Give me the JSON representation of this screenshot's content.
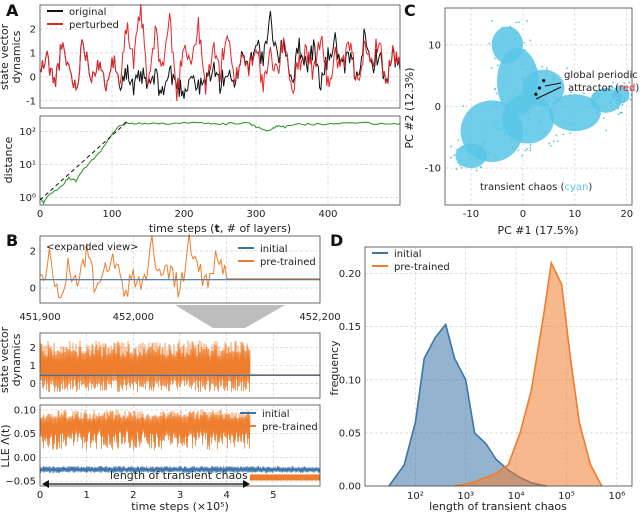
{
  "colors": {
    "original": "#111111",
    "perturbed": "#e4262b",
    "distance": "#3a9a2f",
    "initial": "#3d74a8",
    "pretrained": "#ee7d2d",
    "cyan": "#58c6e6",
    "dashed": "#111111"
  },
  "panel_labels": [
    "A",
    "B",
    "C",
    "D"
  ],
  "chart_data": [
    {
      "id": "A-top",
      "type": "line",
      "ylabel": "state vector dynamics",
      "ylabel_lines": [
        "state vector",
        "dynamics"
      ],
      "xlim": [
        0,
        500
      ],
      "ylim": [
        -1.3,
        3.0
      ],
      "yticks": [
        -1,
        0,
        1,
        2
      ],
      "legend": [
        "original",
        "perturbed"
      ],
      "legend_position": "top-left",
      "series": [
        {
          "name": "original",
          "x": [
            0,
            10,
            20,
            30,
            40,
            50,
            60,
            70,
            80,
            90,
            100,
            110,
            120,
            130,
            140,
            150,
            160,
            170,
            180,
            190,
            200,
            210,
            220,
            230,
            240,
            250,
            260,
            270,
            280,
            290,
            300,
            310,
            320,
            330,
            340,
            350,
            360,
            370,
            380,
            390,
            400,
            410,
            420,
            430,
            440,
            450,
            460,
            470,
            480,
            490,
            500
          ],
          "values": [
            0.2,
            0.8,
            -0.3,
            1.2,
            0.4,
            -0.5,
            1.6,
            0.1,
            0.6,
            -0.4,
            0.9,
            -0.2,
            0.3,
            -0.6,
            0.1,
            -0.4,
            0.0,
            -0.7,
            0.2,
            -0.3,
            -0.6,
            0.1,
            -0.5,
            -0.2,
            0.4,
            -0.3,
            0.2,
            -0.6,
            1.1,
            0.4,
            1.6,
            0.6,
            2.4,
            0.8,
            1.4,
            -0.2,
            1.3,
            0.5,
            1.2,
            -0.3,
            0.8,
            1.5,
            0.2,
            0.9,
            -0.1,
            1.6,
            0.4,
            1.0,
            -0.2,
            0.9,
            0.3
          ]
        },
        {
          "name": "perturbed",
          "x": [
            0,
            10,
            20,
            30,
            40,
            50,
            60,
            70,
            80,
            90,
            100,
            110,
            120,
            130,
            140,
            150,
            160,
            170,
            180,
            190,
            200,
            210,
            220,
            230,
            240,
            250,
            260,
            270,
            280,
            290,
            300,
            310,
            320,
            330,
            340,
            350,
            360,
            370,
            380,
            390,
            400,
            410,
            420,
            430,
            440,
            450,
            460,
            470,
            480,
            490,
            500
          ],
          "values": [
            0.2,
            0.8,
            -0.3,
            1.2,
            0.4,
            -0.5,
            1.6,
            0.1,
            0.6,
            -0.4,
            0.9,
            -0.2,
            2.2,
            0.5,
            2.9,
            -0.5,
            1.8,
            0.3,
            2.5,
            -0.8,
            1.5,
            0.6,
            2.1,
            -0.6,
            1.3,
            0.2,
            1.9,
            -0.4,
            1.0,
            0.3,
            1.4,
            -0.5,
            0.9,
            0.2,
            1.7,
            -0.6,
            0.6,
            1.2,
            0.1,
            1.8,
            -0.4,
            0.9,
            0.3,
            1.4,
            -0.2,
            1.1,
            0.5,
            1.6,
            -0.3,
            1.0,
            0.4
          ]
        }
      ]
    },
    {
      "id": "A-bottom",
      "type": "line",
      "xlabel": "time steps (t, # of layers)",
      "ylabel": "distance",
      "yscale": "log",
      "xlim": [
        0,
        500
      ],
      "ylim": [
        0.6,
        300
      ],
      "xticks": [
        0,
        100,
        200,
        300,
        400
      ],
      "yticks": [
        1,
        10,
        100
      ],
      "ytick_labels": [
        "10⁰",
        "10¹",
        "10²"
      ],
      "series": [
        {
          "name": "distance",
          "x": [
            0,
            5,
            10,
            20,
            30,
            40,
            50,
            60,
            70,
            80,
            90,
            100,
            110,
            120,
            130,
            150,
            170,
            200,
            230,
            250,
            270,
            290,
            300,
            310,
            320,
            330,
            340,
            360,
            380,
            400,
            420,
            450,
            480,
            500
          ],
          "values": [
            1.0,
            0.7,
            1.1,
            1.6,
            2.3,
            4.0,
            3.2,
            7.0,
            12,
            20,
            40,
            80,
            150,
            190,
            170,
            180,
            175,
            185,
            180,
            170,
            180,
            185,
            140,
            120,
            110,
            150,
            140,
            170,
            165,
            180,
            175,
            180,
            178,
            175
          ]
        },
        {
          "name": "exponential fit",
          "dashed": true,
          "x": [
            0,
            120
          ],
          "values": [
            0.85,
            190
          ]
        }
      ]
    },
    {
      "id": "B-expanded",
      "type": "line",
      "annotation": "<expanded view>",
      "xlim": [
        451900,
        452200
      ],
      "ylim": [
        -0.8,
        2.8
      ],
      "yticks": [
        0,
        2
      ],
      "xticks": [
        451900,
        452000,
        452100,
        452200
      ],
      "xtick_labels": [
        "451,900",
        "452,000",
        "452,100",
        "452,200"
      ],
      "legend": [
        "initial",
        "pre-trained"
      ],
      "legend_position": "right",
      "series": [
        {
          "name": "initial",
          "x": [
            451900,
            452200
          ],
          "values": [
            0.45,
            0.45
          ]
        },
        {
          "name": "pre-trained",
          "x": [
            451900,
            451910,
            451920,
            451930,
            451940,
            451950,
            451960,
            451970,
            451980,
            451990,
            452000,
            452010,
            452020,
            452030,
            452040,
            452050,
            452060,
            452070,
            452080,
            452090,
            452100,
            452200
          ],
          "values": [
            0.3,
            1.6,
            -0.5,
            1.1,
            0.2,
            2.0,
            -0.3,
            0.9,
            1.5,
            -0.6,
            0.7,
            0.1,
            2.3,
            0.6,
            1.2,
            -0.2,
            2.5,
            1.0,
            0.2,
            1.8,
            0.5,
            0.5
          ]
        }
      ]
    },
    {
      "id": "B-middle",
      "type": "line",
      "ylabel": "state vector dynamics",
      "ylabel_lines": [
        "state vector",
        "dynamics"
      ],
      "xlim": [
        0,
        6
      ],
      "ylim": [
        -0.8,
        2.8
      ],
      "yticks": [
        0,
        1,
        2
      ],
      "series": [
        {
          "name": "pre-trained",
          "x": [
            0,
            4.5,
            6
          ],
          "band": [
            -0.5,
            2.4
          ],
          "values": [
            0.5,
            0.5,
            0.5
          ]
        },
        {
          "name": "initial",
          "x": [
            0,
            6
          ],
          "values": [
            0.45,
            0.45
          ]
        }
      ]
    },
    {
      "id": "B-bottom",
      "type": "line",
      "xlabel": "time steps (×10⁵)",
      "ylabel": "LLE Λ(t)",
      "xlim": [
        0,
        6
      ],
      "ylim": [
        -0.06,
        0.11
      ],
      "xticks": [
        0,
        1,
        2,
        3,
        4,
        5
      ],
      "yticks": [
        -0.05,
        0.0,
        0.05,
        0.1
      ],
      "ytick_labels": [
        "−0.05",
        "0.00",
        "0.05",
        "0.10"
      ],
      "legend": [
        "initial",
        "pre-trained"
      ],
      "legend_position": "right",
      "annotation": "length of transient chaos",
      "series": [
        {
          "name": "pre-trained",
          "x": [
            0,
            4.5
          ],
          "band": [
            0.015,
            0.1
          ],
          "values": [
            0.065,
            0.065
          ]
        },
        {
          "name": "pre-trained-after",
          "x": [
            4.5,
            6
          ],
          "values": [
            -0.042,
            -0.042
          ]
        },
        {
          "name": "initial",
          "x": [
            0,
            6
          ],
          "band": [
            -0.033,
            -0.018
          ],
          "values": [
            -0.025,
            -0.025
          ]
        }
      ]
    },
    {
      "id": "C",
      "type": "scatter",
      "xlabel": "PC #1 (17.5%)",
      "ylabel": "PC #2 (12.3%)",
      "xlim": [
        -15,
        21
      ],
      "ylim": [
        -16,
        16
      ],
      "xticks": [
        -10,
        0,
        10,
        20
      ],
      "yticks": [
        -10,
        0,
        10
      ],
      "annotations": [
        "global periodic attractor (red)",
        "transient chaos (cyan)"
      ],
      "annotation_parts": {
        "periodic_line1": "global periodic",
        "periodic_line2": "attractor (",
        "periodic_red": "red",
        "chaos_prefix": "transient chaos (",
        "chaos_cyan": "cyan",
        "close": ")"
      },
      "attractor_points": [
        [
          4.0,
          4.2
        ],
        [
          3.2,
          3.0
        ],
        [
          2.5,
          2.0
        ]
      ]
    },
    {
      "id": "D",
      "type": "area",
      "xlabel": "length of transient chaos",
      "ylabel": "frequency",
      "xscale": "log",
      "xlim": [
        10,
        2000000
      ],
      "ylim": [
        0,
        0.225
      ],
      "xticks": [
        100,
        1000,
        10000,
        100000,
        1000000
      ],
      "xtick_labels": [
        "10²",
        "10³",
        "10⁴",
        "10⁵",
        "10⁶"
      ],
      "yticks": [
        0.0,
        0.05,
        0.1,
        0.15,
        0.2
      ],
      "ytick_labels": [
        "0.00",
        "0.05",
        "0.10",
        "0.15",
        "0.20"
      ],
      "legend": [
        "initial",
        "pre-trained"
      ],
      "legend_position": "top-left",
      "series": [
        {
          "name": "initial",
          "x": [
            30,
            60,
            100,
            150,
            250,
            400,
            600,
            1000,
            1500,
            2500,
            4000,
            7000,
            12000,
            20000,
            40000
          ],
          "values": [
            0.0,
            0.02,
            0.06,
            0.12,
            0.14,
            0.152,
            0.12,
            0.1,
            0.05,
            0.04,
            0.025,
            0.015,
            0.008,
            0.003,
            0.0
          ]
        },
        {
          "name": "pre-trained",
          "x": [
            600,
            1000,
            1500,
            2500,
            4000,
            7000,
            12000,
            20000,
            35000,
            50000,
            80000,
            120000,
            180000,
            300000,
            500000
          ],
          "values": [
            0.0,
            0.002,
            0.004,
            0.008,
            0.012,
            0.02,
            0.05,
            0.09,
            0.16,
            0.21,
            0.19,
            0.12,
            0.06,
            0.02,
            0.0
          ]
        }
      ]
    }
  ]
}
